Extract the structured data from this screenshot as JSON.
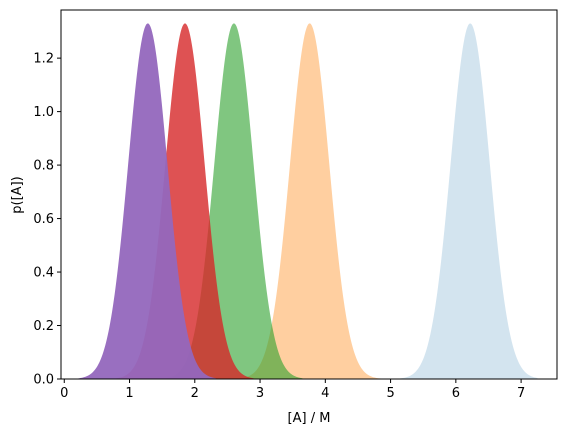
{
  "chart_data": {
    "type": "area",
    "title": "",
    "xlabel": "[A] / M",
    "ylabel": "p([A])",
    "xlim": [
      -0.05,
      7.55
    ],
    "ylim": [
      0.0,
      1.38
    ],
    "xticks": [
      0,
      1,
      2,
      3,
      4,
      5,
      6,
      7
    ],
    "yticks": [
      0.0,
      0.2,
      0.4,
      0.6,
      0.8,
      1.0,
      1.2
    ],
    "grid": false,
    "legend": "none",
    "series": [
      {
        "mean": 6.22,
        "sd": 0.3,
        "peak": 1.33,
        "x_range": [
          5.15,
          7.25
        ],
        "color": "#aecde2",
        "opacity": 0.55
      },
      {
        "mean": 3.76,
        "sd": 0.3,
        "peak": 1.33,
        "x_range": [
          2.7,
          4.85
        ],
        "color": "#ffbb78",
        "opacity": 0.7
      },
      {
        "mean": 2.6,
        "sd": 0.3,
        "peak": 1.33,
        "x_range": [
          1.55,
          3.65
        ],
        "color": "#2ca02c",
        "opacity": 0.6
      },
      {
        "mean": 1.85,
        "sd": 0.3,
        "peak": 1.33,
        "x_range": [
          0.8,
          2.9
        ],
        "color": "#d62728",
        "opacity": 0.8
      },
      {
        "mean": 1.28,
        "sd": 0.3,
        "peak": 1.33,
        "x_range": [
          0.22,
          2.32
        ],
        "color": "#9467bd",
        "opacity": 0.95
      }
    ]
  }
}
